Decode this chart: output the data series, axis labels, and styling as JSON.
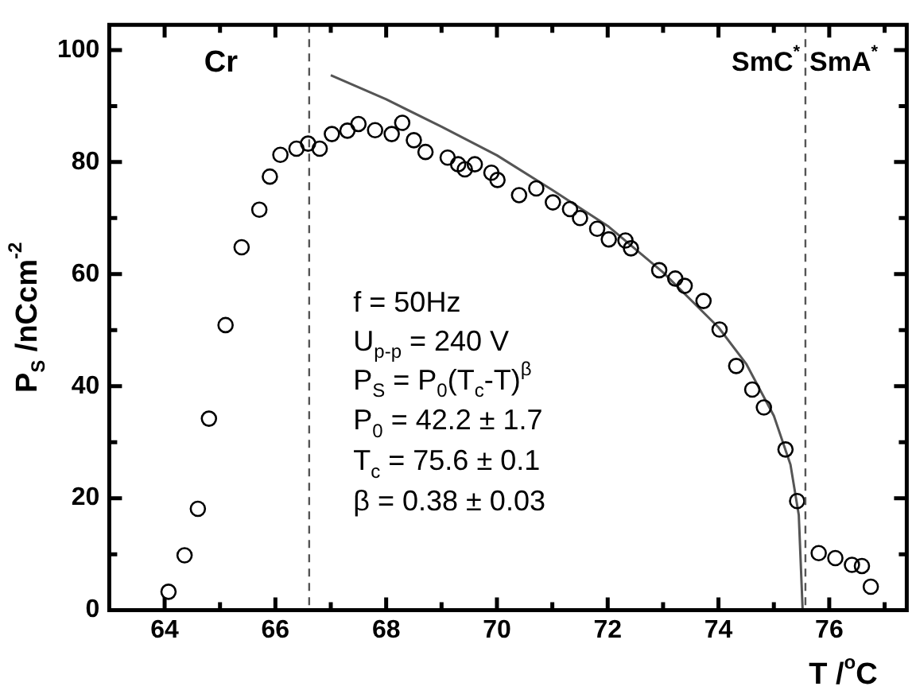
{
  "chart_data": {
    "type": "scatter",
    "xlabel": "T /$^{o}$C",
    "ylabel": "P$_{S}$ /nCcm$^{-2}$",
    "xlim": [
      63.0,
      77.4
    ],
    "ylim": [
      0,
      104.5
    ],
    "xticks": [
      64,
      {
        "value": 65,
        "label": null
      },
      66,
      {
        "value": 67,
        "label": null
      },
      68,
      {
        "value": 69,
        "label": null
      },
      70,
      {
        "value": 71,
        "label": null
      },
      72,
      {
        "value": 73,
        "label": null
      },
      74,
      {
        "value": 75,
        "label": null
      },
      76,
      {
        "value": 77,
        "label": null
      }
    ],
    "yticks": [
      0,
      {
        "value": 10,
        "label": null
      },
      20,
      {
        "value": 30,
        "label": null
      },
      40,
      {
        "value": 50,
        "label": null
      },
      60,
      {
        "value": 70,
        "label": null
      },
      80,
      {
        "value": 90,
        "label": null
      },
      100
    ],
    "marker": "circle",
    "series": [
      {
        "color": "#000000",
        "x": [
          64.07,
          64.36,
          64.6,
          64.8,
          65.1,
          65.39,
          65.71,
          65.9,
          66.09,
          66.38,
          66.59,
          66.8,
          67.02,
          67.3,
          67.5,
          67.8,
          68.1,
          68.29,
          68.5,
          68.71,
          69.11,
          69.3,
          69.42,
          69.6,
          69.9,
          70.01,
          70.4,
          70.71,
          71.01,
          71.32,
          71.5,
          71.81,
          72.02,
          72.32,
          72.42,
          72.93,
          73.22,
          73.39,
          73.73,
          74.02,
          74.32,
          74.61,
          74.82,
          75.21,
          75.42,
          75.81,
          76.11,
          76.41,
          76.59,
          76.75
        ],
        "values": [
          3.3,
          9.8,
          18.1,
          34.2,
          50.9,
          64.8,
          71.5,
          77.4,
          81.3,
          82.4,
          83.3,
          82.4,
          85.0,
          85.6,
          86.8,
          85.7,
          85.0,
          87.0,
          83.9,
          81.8,
          80.8,
          79.6,
          78.7,
          79.6,
          78.1,
          76.8,
          74.1,
          75.3,
          72.8,
          71.6,
          70.0,
          68.1,
          66.2,
          66.0,
          64.6,
          60.7,
          59.2,
          57.9,
          55.2,
          50.1,
          43.6,
          39.4,
          36.2,
          28.7,
          19.5,
          10.2,
          9.3,
          8.1,
          7.9,
          4.2
        ]
      },
      {
        "type": "line",
        "color": "#555555",
        "marker": "none",
        "x": [
          67.0,
          68.0,
          69.0,
          70.0,
          71.0,
          72.0,
          73.0,
          74.0,
          74.5,
          75.0,
          75.3,
          75.45,
          75.52
        ],
        "values": [
          95.5,
          91.2,
          86.3,
          81.2,
          75.0,
          68.6,
          60.3,
          50.5,
          44.0,
          34.7,
          26.0,
          17.0,
          0
        ]
      }
    ],
    "ref_lines": [
      {
        "axis": "x",
        "value": 66.61,
        "color": "#555555",
        "line_style": "dashed"
      },
      {
        "axis": "x",
        "value": 75.57,
        "color": "#555555",
        "line_style": "dashed"
      }
    ],
    "annotations": [
      "Cr",
      "SmC$^{*}$",
      "SmA$^{*}$",
      "f = 50Hz",
      "U$_{p-p}$ = 240 V",
      "P$_{S}$ = P$_{0}$(T$_{c}$-T)$^{β}$",
      "P$_{0}$ = 42.2 ± 1.7",
      "T$_{c}$ = 75.6 ± 0.1",
      "β = 0.38 ± 0.03"
    ]
  }
}
